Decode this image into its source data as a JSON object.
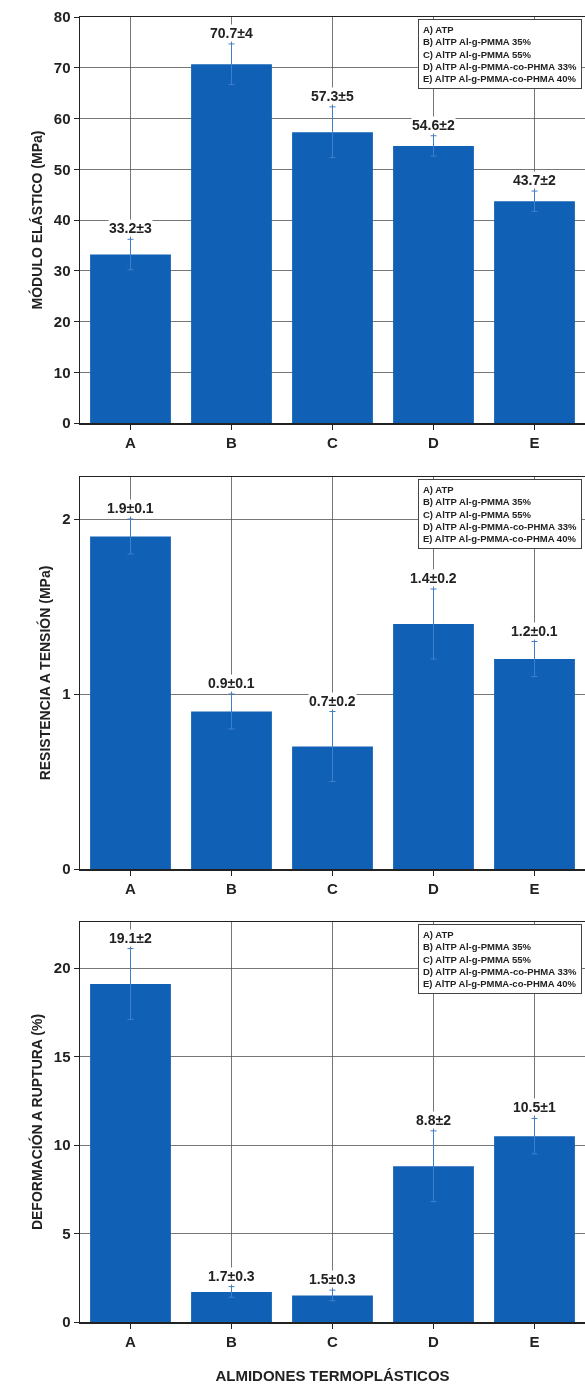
{
  "chart_data": [
    {
      "type": "bar",
      "ylabel": "MÓDULO ELÁSTICO (MPa)",
      "categories": [
        "A",
        "B",
        "C",
        "D",
        "E"
      ],
      "values": [
        33.2,
        70.7,
        57.3,
        54.6,
        43.7
      ],
      "errors": [
        3,
        4,
        5,
        2,
        2
      ],
      "value_labels": [
        "33.2±3",
        "70.7±4",
        "57.3±5",
        "54.6±2",
        "43.7±2"
      ],
      "color": "#1061b5",
      "ylim": [
        0,
        80
      ],
      "yticks": [
        0,
        10,
        20,
        30,
        40,
        50,
        60,
        70,
        80
      ],
      "grid": true,
      "annotations": [
        "A) ATP",
        "B) AlTP Al-g-PMMA 35%",
        "C) AlTP Al-g-PMMA 55%",
        "D) AlTP Al-g-PMMA-co-PHMA 33%",
        "E) AlTP Al-g-PMMA-co-PHMA 40%"
      ]
    },
    {
      "type": "bar",
      "ylabel": "RESISTENCIA A TENSIÓN (MPa)",
      "categories": [
        "A",
        "B",
        "C",
        "D",
        "E"
      ],
      "values": [
        1.9,
        0.9,
        0.7,
        1.4,
        1.2
      ],
      "errors": [
        0.1,
        0.1,
        0.2,
        0.2,
        0.1
      ],
      "value_labels": [
        "1.9±0.1",
        "0.9±0.1",
        "0.7±0.2",
        "1.4±0.2",
        "1.2±0.1"
      ],
      "color": "#1061b5",
      "ylim": [
        0,
        2.24
      ],
      "yticks": [
        0,
        1,
        2
      ],
      "grid": true,
      "annotations": [
        "A) ATP",
        "B) AlTP Al-g-PMMA 35%",
        "C) AlTP Al-g-PMMA 55%",
        "D) AlTP Al-g-PMMA-co-PHMA 33%",
        "E) AlTP Al-g-PMMA-co-PHMA 40%"
      ]
    },
    {
      "type": "bar",
      "xlabel": "ALMIDONES TERMOPLÁSTICOS",
      "ylabel": "DEFORMACIÓN A RUPTURA (%)",
      "categories": [
        "A",
        "B",
        "C",
        "D",
        "E"
      ],
      "values": [
        19.1,
        1.7,
        1.5,
        8.8,
        10.5
      ],
      "errors": [
        2,
        0.3,
        0.3,
        2,
        1
      ],
      "value_labels": [
        "19.1±2",
        "1.7±0.3",
        "1.5±0.3",
        "8.8±2",
        "10.5±1"
      ],
      "color": "#1061b5",
      "ylim": [
        0,
        22.6
      ],
      "yticks": [
        0,
        5,
        10,
        15,
        20
      ],
      "grid": true,
      "annotations": [
        "A) ATP",
        "B) AlTP Al-g-PMMA 35%",
        "C) AlTP Al-g-PMMA 55%",
        "D) AlTP Al-g-PMMA-co-PHMA 33%",
        "E) AlTP Al-g-PMMA-co-PHMA 40%"
      ]
    }
  ]
}
